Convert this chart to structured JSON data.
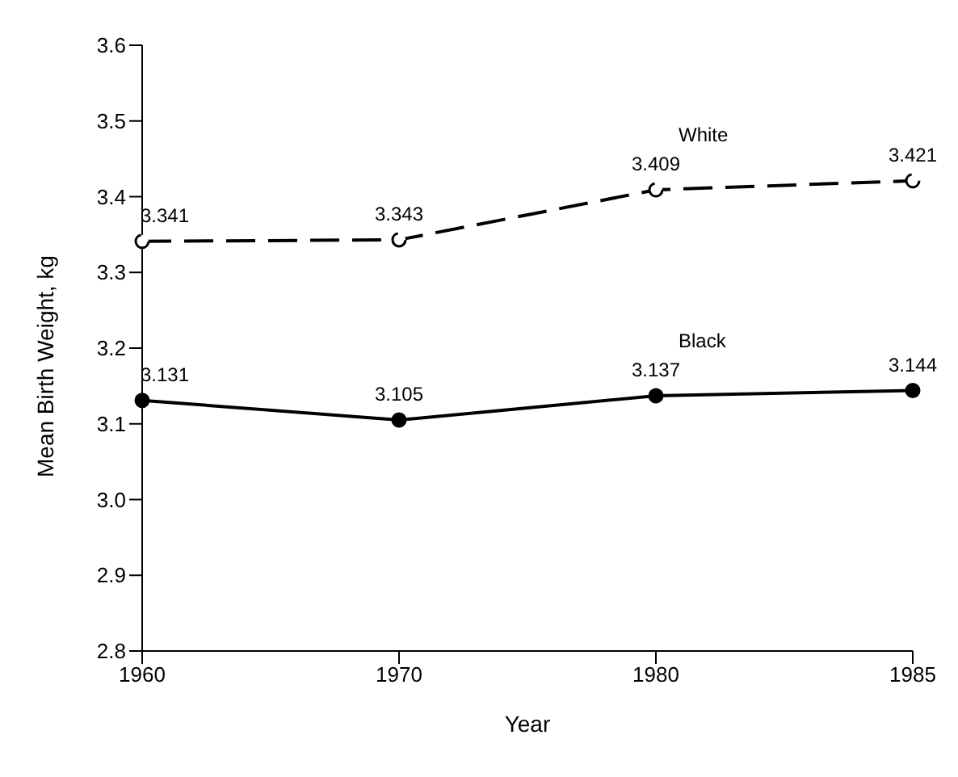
{
  "chart_data": {
    "type": "line",
    "xlabel": "Year",
    "ylabel": "Mean Birth Weight, kg",
    "categories": [
      "1960",
      "1970",
      "1980",
      "1985"
    ],
    "series": [
      {
        "name": "White",
        "color": "#000000",
        "line_style": "dashed",
        "values": [
          3.341,
          3.343,
          3.409,
          3.421
        ]
      },
      {
        "name": "Black",
        "color": "#000000",
        "line_style": "solid",
        "values": [
          3.131,
          3.105,
          3.137,
          3.144
        ]
      }
    ],
    "ylim": [
      2.8,
      3.6
    ],
    "yticks": [
      2.8,
      2.9,
      {
        "value": 3,
        "label": "3.0"
      },
      3.1,
      3.2,
      3.3,
      3.4,
      3.5,
      3.6
    ],
    "marker": "circle",
    "data_labels": true,
    "grid": false,
    "legend": false
  }
}
